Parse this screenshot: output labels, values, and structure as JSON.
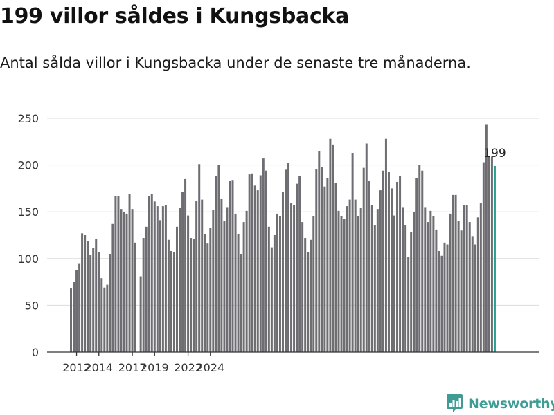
{
  "title": "199 villor såldes i Kungsbacka",
  "subtitle": "Antal sålda villor i Kungsbacka under de senaste tre månaderna.",
  "brand": {
    "name": "Newsworthy",
    "icon": "newsworthy-logo-icon",
    "color": "#3e9c95"
  },
  "chart_data": {
    "type": "bar",
    "title": "",
    "xlabel": "",
    "ylabel": "",
    "ylim": [
      0,
      265
    ],
    "yticks": [
      0,
      50,
      100,
      150,
      200,
      250
    ],
    "xticks": [
      {
        "x": 2012,
        "label": "2012"
      },
      {
        "x": 2014,
        "label": "2014"
      },
      {
        "x": 2017,
        "label": "2017"
      },
      {
        "x": 2019,
        "label": "2019"
      },
      {
        "x": 2022,
        "label": "2022"
      },
      {
        "x": 2024,
        "label": "2024"
      }
    ],
    "x_start": 2011.5,
    "period": "3 månader",
    "grid": true,
    "bar_color": "#6e6d72",
    "highlight_color": "#2b9e93",
    "highlight_label": "199",
    "values": [
      68,
      75,
      88,
      95,
      127,
      125,
      119,
      104,
      111,
      121,
      107,
      79,
      69,
      72,
      105,
      137,
      167,
      167,
      153,
      150,
      148,
      169,
      153,
      117,
      0,
      81,
      122,
      134,
      167,
      169,
      161,
      156,
      141,
      156,
      157,
      120,
      108,
      107,
      134,
      154,
      171,
      185,
      146,
      122,
      121,
      162,
      201,
      163,
      126,
      116,
      133,
      152,
      188,
      200,
      164,
      140,
      155,
      183,
      184,
      148,
      126,
      105,
      139,
      151,
      190,
      191,
      178,
      173,
      189,
      207,
      194,
      134,
      112,
      125,
      148,
      145,
      171,
      195,
      202,
      159,
      157,
      180,
      188,
      139,
      122,
      107,
      120,
      145,
      196,
      215,
      198,
      177,
      186,
      228,
      222,
      181,
      151,
      145,
      142,
      156,
      163,
      213,
      163,
      145,
      154,
      197,
      223,
      183,
      157,
      136,
      153,
      173,
      194,
      228,
      193,
      175,
      146,
      182,
      188,
      155,
      136,
      102,
      128,
      150,
      186,
      200,
      194,
      155,
      139,
      151,
      145,
      131,
      108,
      103,
      117,
      115,
      148,
      168,
      168,
      140,
      130,
      157,
      157,
      139,
      124,
      115,
      144,
      159,
      203,
      243,
      209,
      209,
      199
    ]
  }
}
